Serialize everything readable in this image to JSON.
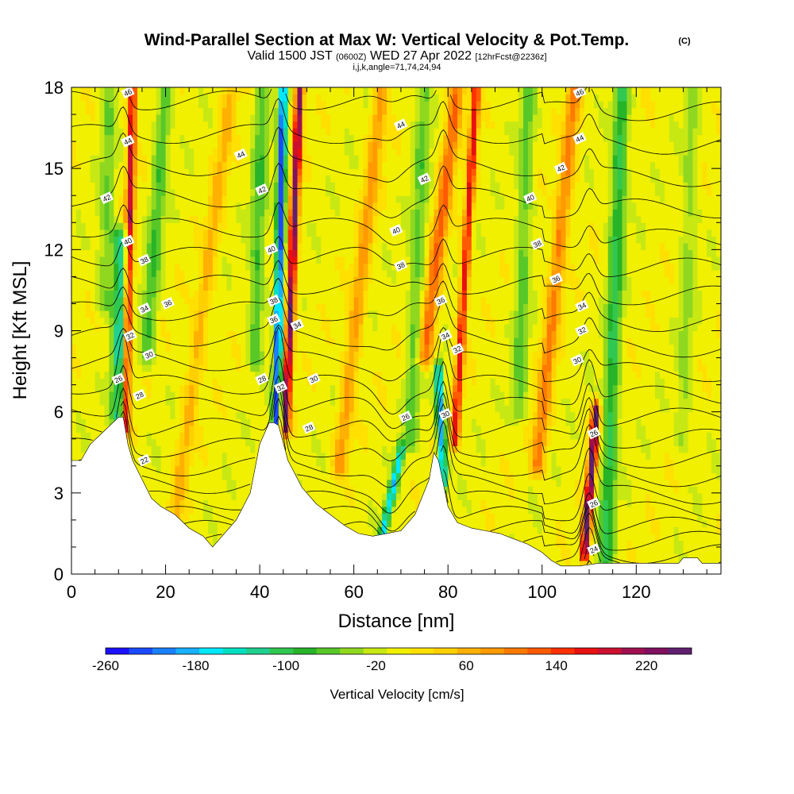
{
  "header": {
    "title": "Wind-Parallel Section at Max W: Vertical Velocity & Pot.Temp.",
    "copyright": "(C)",
    "valid_a": "Valid 1500 JST",
    "valid_b": "(0600Z)",
    "valid_c": "WED 27 Apr 2022",
    "valid_d": "[12hrFcst@2236z]",
    "params": "i,j,k,angle=71,74,24,94"
  },
  "chart_data": {
    "type": "heatmap",
    "xlabel": "Distance [nm]",
    "ylabel": "Height [Kft MSL]",
    "xlim": [
      0,
      138
    ],
    "ylim": [
      0,
      18
    ],
    "x_ticks": [
      0,
      20,
      40,
      60,
      80,
      100,
      120
    ],
    "y_ticks": [
      0,
      3,
      6,
      9,
      12,
      15,
      18
    ],
    "colorbar": {
      "label": "Vertical Velocity [cm/s]",
      "range": [
        -260,
        260
      ],
      "tick_values": [
        -260,
        -180,
        -100,
        -20,
        60,
        140,
        220
      ],
      "colors": [
        "#1a10ff",
        "#1a4aff",
        "#1a80ff",
        "#18b0ff",
        "#00e8ff",
        "#00e0c0",
        "#20d090",
        "#30c850",
        "#28b428",
        "#58c828",
        "#90d820",
        "#c8e814",
        "#f0f000",
        "#ffe000",
        "#ffd000",
        "#ffb000",
        "#ff9a00",
        "#ff7a00",
        "#ff5a00",
        "#ff3000",
        "#e81010",
        "#cc1030",
        "#a01050",
        "#801060",
        "#602070"
      ]
    },
    "terrain": [
      [
        0,
        4.2
      ],
      [
        2,
        4.2
      ],
      [
        4,
        4.8
      ],
      [
        7,
        5.3
      ],
      [
        10,
        5.8
      ],
      [
        11,
        5.8
      ],
      [
        12,
        4.8
      ],
      [
        13,
        4.2
      ],
      [
        15,
        3.5
      ],
      [
        17,
        2.8
      ],
      [
        19,
        2.5
      ],
      [
        22,
        2.2
      ],
      [
        25,
        1.7
      ],
      [
        28,
        1.4
      ],
      [
        30,
        1.0
      ],
      [
        32,
        1.4
      ],
      [
        35,
        2.0
      ],
      [
        38,
        3.0
      ],
      [
        40,
        4.8
      ],
      [
        42,
        5.6
      ],
      [
        43,
        5.6
      ],
      [
        44,
        5.5
      ],
      [
        46,
        4.2
      ],
      [
        49,
        3.2
      ],
      [
        52,
        2.6
      ],
      [
        55,
        2.2
      ],
      [
        58,
        1.8
      ],
      [
        61,
        1.5
      ],
      [
        64,
        1.4
      ],
      [
        67,
        1.5
      ],
      [
        70,
        1.6
      ],
      [
        73,
        2.2
      ],
      [
        76,
        3.5
      ],
      [
        77,
        4.5
      ],
      [
        78,
        4.2
      ],
      [
        80,
        2.5
      ],
      [
        82,
        1.9
      ],
      [
        85,
        1.7
      ],
      [
        88,
        1.6
      ],
      [
        91,
        1.5
      ],
      [
        94,
        1.3
      ],
      [
        97,
        1.1
      ],
      [
        100,
        0.8
      ],
      [
        102,
        0.5
      ],
      [
        104,
        0.3
      ],
      [
        108,
        0.3
      ],
      [
        112,
        0.4
      ],
      [
        120,
        0.4
      ],
      [
        125,
        0.4
      ],
      [
        129,
        0.4
      ],
      [
        130,
        0.6
      ],
      [
        133,
        0.6
      ],
      [
        134,
        0.4
      ],
      [
        138,
        0.4
      ]
    ],
    "updrafts": [
      {
        "x0": 11.5,
        "x1": 13.0,
        "z0": 5.5,
        "z1": 18,
        "w": 190
      },
      {
        "x0": 45.5,
        "x1": 48.5,
        "z0": 5.5,
        "z1": 18,
        "w": 240
      },
      {
        "x0": 81.5,
        "x1": 86.0,
        "z0": 5.0,
        "z1": 18,
        "w": 170
      },
      {
        "x0": 109.0,
        "x1": 111.5,
        "z0": 0.8,
        "z1": 6.0,
        "w": 250
      },
      {
        "x0": 75.0,
        "x1": 82.0,
        "z0": 8.0,
        "z1": 18,
        "w": 120
      },
      {
        "x0": 99.0,
        "x1": 107.0,
        "z0": 4.0,
        "z1": 18,
        "w": 100
      },
      {
        "x0": 22.0,
        "x1": 34.0,
        "z0": 2.0,
        "z1": 18,
        "w": 60
      },
      {
        "x0": 57.0,
        "x1": 66.0,
        "z0": 4.0,
        "z1": 18,
        "w": 80
      }
    ],
    "downdrafts": [
      {
        "x0": 10.0,
        "x1": 10.5,
        "z0": 5.8,
        "z1": 12.5,
        "w": -130
      },
      {
        "x0": 43.5,
        "x1": 45.0,
        "z0": 5.6,
        "z1": 18,
        "w": -230
      },
      {
        "x0": 79.0,
        "x1": 78.0,
        "z0": 3.5,
        "z1": 7.5,
        "w": -190
      },
      {
        "x0": 66.0,
        "x1": 70.0,
        "z0": 1.4,
        "z1": 4.5,
        "w": -170
      },
      {
        "x0": 113.5,
        "x1": 117.0,
        "z0": 0.5,
        "z1": 18,
        "w": -100
      },
      {
        "x0": 7.0,
        "x1": 8.0,
        "z0": 10.0,
        "z1": 18,
        "w": -50
      },
      {
        "x0": 16.0,
        "x1": 20.0,
        "z0": 8.0,
        "z1": 18,
        "w": -70
      },
      {
        "x0": 39.0,
        "x1": 40.5,
        "z0": 8.0,
        "z1": 18,
        "w": -70
      },
      {
        "x0": 72.0,
        "x1": 75.0,
        "z0": 5.0,
        "z1": 18,
        "w": -60
      },
      {
        "x0": 95.0,
        "x1": 97.0,
        "z0": 6.0,
        "z1": 18,
        "w": -60
      },
      {
        "x0": 130.0,
        "x1": 132.0,
        "z0": 5.0,
        "z1": 18,
        "w": -40
      }
    ],
    "theta_levels": [
      22,
      24,
      26,
      28,
      30,
      32,
      34,
      36,
      38,
      40,
      42,
      44,
      46
    ],
    "theta_labels": [
      {
        "text": "46",
        "x": 12,
        "z": 17.8
      },
      {
        "text": "44",
        "x": 12,
        "z": 16.0
      },
      {
        "text": "42",
        "x": 7.5,
        "z": 13.9
      },
      {
        "text": "40",
        "x": 12,
        "z": 12.3
      },
      {
        "text": "38",
        "x": 15.5,
        "z": 11.6
      },
      {
        "text": "36",
        "x": 20.5,
        "z": 10.0
      },
      {
        "text": "34",
        "x": 15.5,
        "z": 9.8
      },
      {
        "text": "32",
        "x": 12.5,
        "z": 8.8
      },
      {
        "text": "30",
        "x": 16.5,
        "z": 8.1
      },
      {
        "text": "26",
        "x": 10,
        "z": 7.2
      },
      {
        "text": "28",
        "x": 14.5,
        "z": 6.6
      },
      {
        "text": "22",
        "x": 15.5,
        "z": 4.2
      },
      {
        "text": "44",
        "x": 36,
        "z": 15.5
      },
      {
        "text": "42",
        "x": 40.5,
        "z": 14.2
      },
      {
        "text": "40",
        "x": 42.5,
        "z": 12.0
      },
      {
        "text": "38",
        "x": 43,
        "z": 10.1
      },
      {
        "text": "36",
        "x": 43,
        "z": 9.4
      },
      {
        "text": "34",
        "x": 48,
        "z": 9.2
      },
      {
        "text": "28",
        "x": 40.5,
        "z": 7.2
      },
      {
        "text": "32",
        "x": 44.5,
        "z": 6.9
      },
      {
        "text": "30",
        "x": 51.5,
        "z": 7.2
      },
      {
        "text": "28",
        "x": 50.5,
        "z": 5.4
      },
      {
        "text": "44",
        "x": 70,
        "z": 16.6
      },
      {
        "text": "42",
        "x": 75,
        "z": 14.6
      },
      {
        "text": "40",
        "x": 69,
        "z": 12.7
      },
      {
        "text": "38",
        "x": 70,
        "z": 11.4
      },
      {
        "text": "36",
        "x": 78.5,
        "z": 10.1
      },
      {
        "text": "34",
        "x": 79.5,
        "z": 8.8
      },
      {
        "text": "32",
        "x": 82,
        "z": 8.3
      },
      {
        "text": "26",
        "x": 71,
        "z": 5.8
      },
      {
        "text": "30",
        "x": 79.5,
        "z": 5.9
      },
      {
        "text": "46",
        "x": 108,
        "z": 17.8
      },
      {
        "text": "44",
        "x": 108,
        "z": 16.1
      },
      {
        "text": "42",
        "x": 104,
        "z": 15.0
      },
      {
        "text": "40",
        "x": 97.5,
        "z": 13.9
      },
      {
        "text": "38",
        "x": 99,
        "z": 12.2
      },
      {
        "text": "36",
        "x": 103,
        "z": 10.9
      },
      {
        "text": "34",
        "x": 108.5,
        "z": 9.9
      },
      {
        "text": "32",
        "x": 108.5,
        "z": 9.0
      },
      {
        "text": "30",
        "x": 107.5,
        "z": 7.9
      },
      {
        "text": "26",
        "x": 111,
        "z": 5.2
      },
      {
        "text": "26",
        "x": 111,
        "z": 2.6
      },
      {
        "text": "24",
        "x": 111,
        "z": 0.9
      }
    ]
  }
}
